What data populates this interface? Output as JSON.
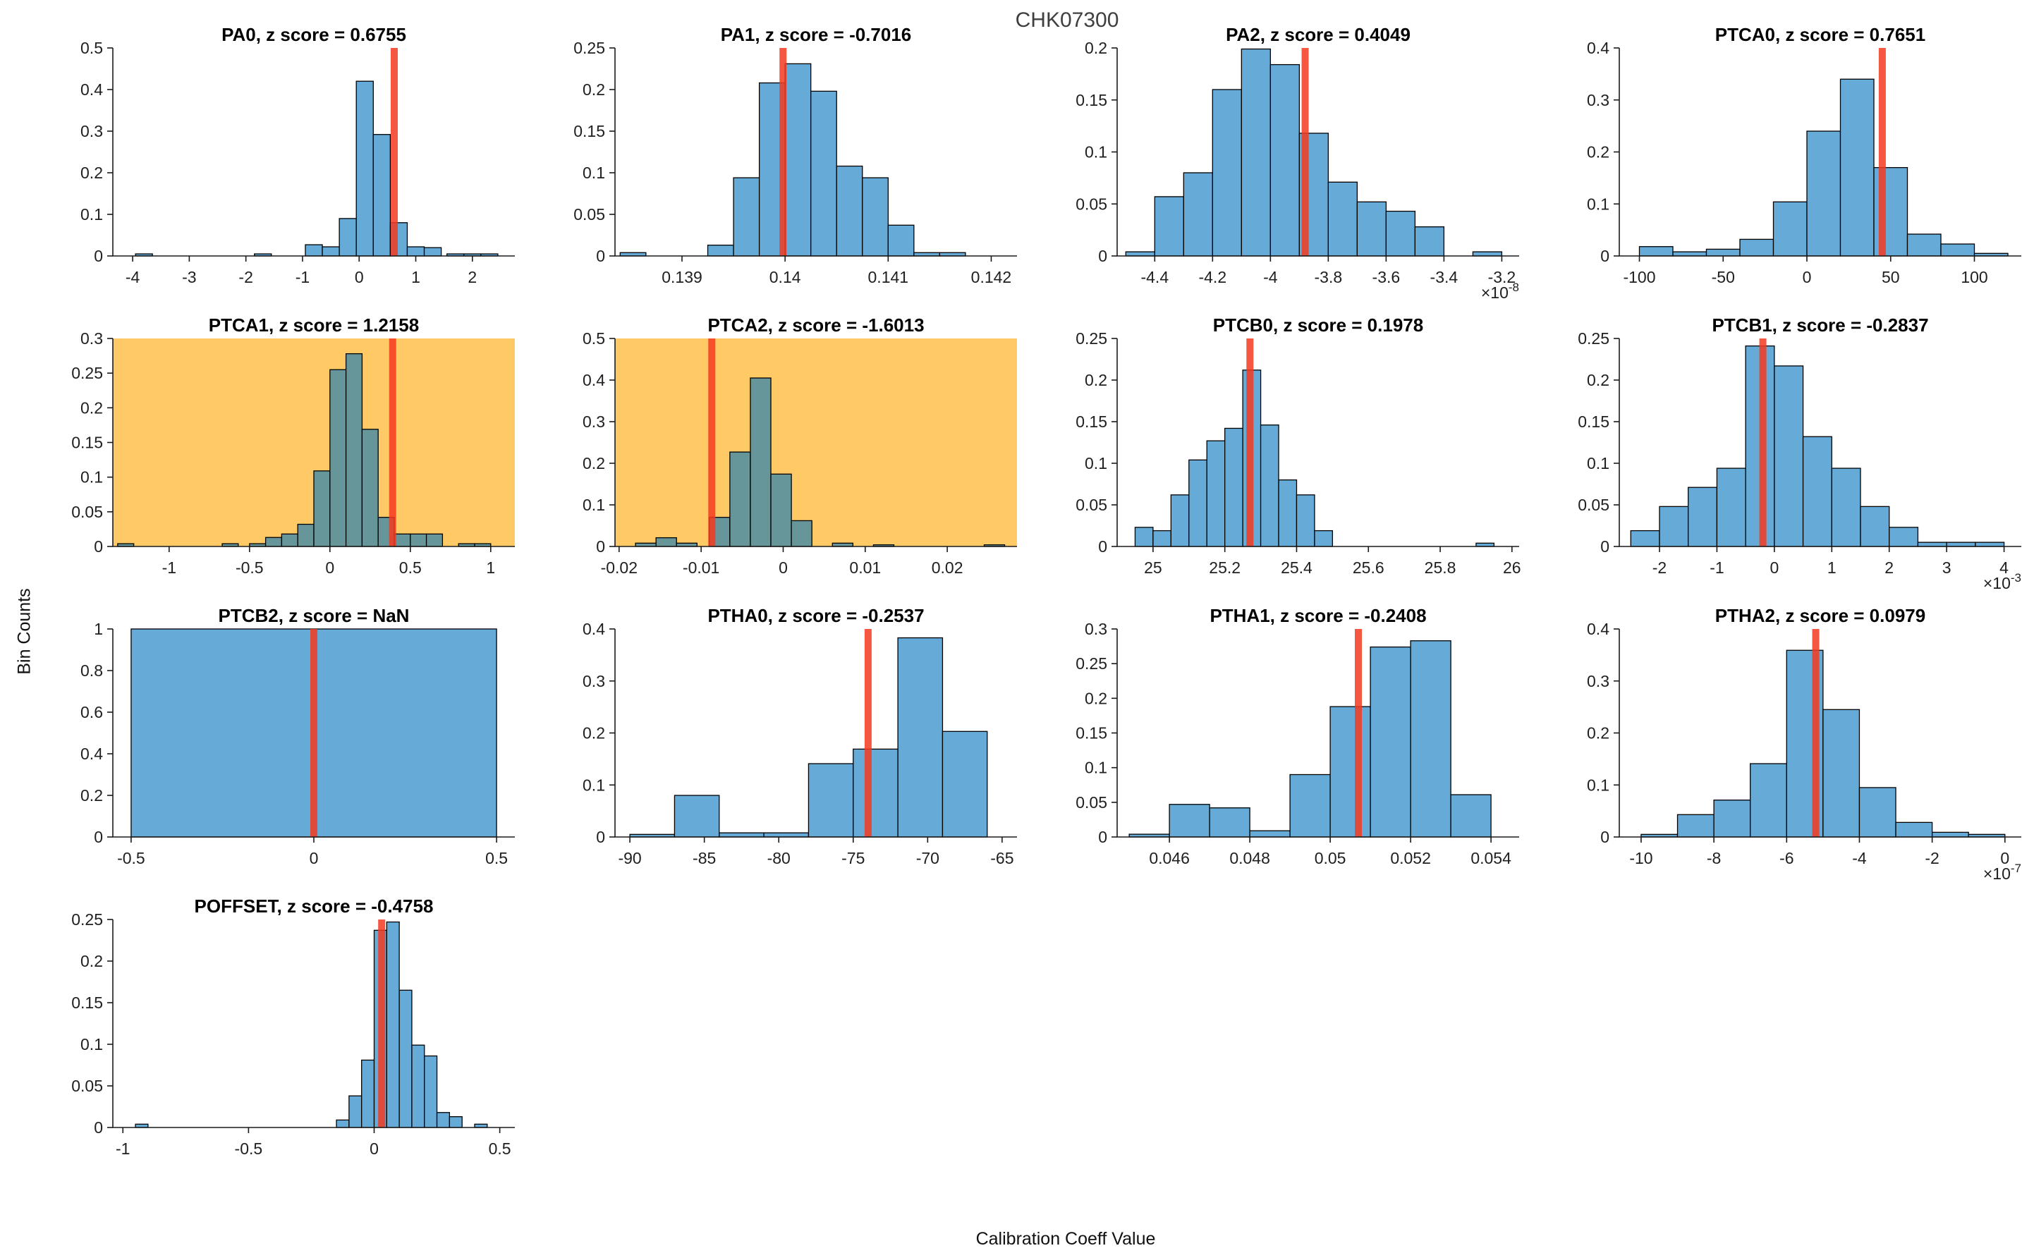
{
  "figure_title": "CHK07300",
  "axis_labels": {
    "y": "Bin Counts",
    "x": "Calibration Coeff Value"
  },
  "colors": {
    "bar_fill": "#66ABD7",
    "bar_fill_highlighted": "#66959A",
    "bar_edge": "#000000",
    "marker_line": "#F53A1E",
    "highlight_background": "#FFCA66",
    "axis_line": "#1a1a1a",
    "tick_label": "#202020",
    "figure_title_color": "#3F3F3F"
  },
  "chart_data": [
    {
      "type": "bar",
      "name": "PA0",
      "title": "PA0, z score = 0.6755",
      "z_score": "0.6755",
      "highlighted": false,
      "x_scale_exponent": null,
      "xlim": [
        -4.35,
        2.75
      ],
      "ylim": [
        0,
        0.5
      ],
      "xticks": [
        -4,
        -3,
        -2,
        -1,
        0,
        1,
        2
      ],
      "xtick_labels": [
        "-4",
        "-3",
        "-2",
        "-1",
        "0",
        "1",
        "2"
      ],
      "yticks": [
        0,
        0.1,
        0.2,
        0.3,
        0.4,
        0.5
      ],
      "ytick_labels": [
        "0",
        "0.1",
        "0.2",
        "0.3",
        "0.4",
        "0.5"
      ],
      "marker_x": 0.62,
      "bars": [
        [
          -3.95,
          -3.65,
          0.005
        ],
        [
          -1.85,
          -1.55,
          0.005
        ],
        [
          -0.95,
          -0.65,
          0.027
        ],
        [
          -0.65,
          -0.35,
          0.022
        ],
        [
          -0.35,
          -0.05,
          0.09
        ],
        [
          -0.05,
          0.25,
          0.42
        ],
        [
          0.25,
          0.55,
          0.292
        ],
        [
          0.55,
          0.85,
          0.08
        ],
        [
          0.85,
          1.15,
          0.022
        ],
        [
          1.15,
          1.45,
          0.02
        ],
        [
          1.55,
          1.85,
          0.005
        ],
        [
          1.85,
          2.15,
          0.005
        ],
        [
          2.15,
          2.45,
          0.005
        ]
      ]
    },
    {
      "type": "bar",
      "name": "PA1",
      "title": "PA1, z score = -0.7016",
      "z_score": "-0.7016",
      "highlighted": false,
      "x_scale_exponent": null,
      "xlim": [
        0.13835,
        0.14225
      ],
      "ylim": [
        0,
        0.25
      ],
      "xticks": [
        0.139,
        0.14,
        0.141,
        0.142
      ],
      "xtick_labels": [
        "0.139",
        "0.14",
        "0.141",
        "0.142"
      ],
      "yticks": [
        0,
        0.05,
        0.1,
        0.15,
        0.2,
        0.25
      ],
      "ytick_labels": [
        "0",
        "0.05",
        "0.1",
        "0.15",
        "0.2",
        "0.25"
      ],
      "marker_x": 0.13998,
      "bars": [
        [
          0.1384,
          0.13865,
          0.004
        ],
        [
          0.13925,
          0.1395,
          0.013
        ],
        [
          0.1395,
          0.13975,
          0.094
        ],
        [
          0.13975,
          0.14,
          0.208
        ],
        [
          0.14,
          0.14025,
          0.231
        ],
        [
          0.14025,
          0.1405,
          0.198
        ],
        [
          0.1405,
          0.14075,
          0.108
        ],
        [
          0.14075,
          0.141,
          0.094
        ],
        [
          0.141,
          0.14125,
          0.037
        ],
        [
          0.14125,
          0.1415,
          0.004
        ],
        [
          0.1415,
          0.14175,
          0.004
        ]
      ]
    },
    {
      "type": "bar",
      "name": "PA2",
      "title": "PA2, z score = 0.4049",
      "z_score": "0.4049",
      "highlighted": false,
      "x_scale_exponent": "-8",
      "xlim": [
        -4.53,
        -3.14
      ],
      "ylim": [
        0,
        0.2
      ],
      "xticks": [
        -4.4,
        -4.2,
        -4,
        -3.8,
        -3.6,
        -3.4,
        -3.2
      ],
      "xtick_labels": [
        "-4.4",
        "-4.2",
        "-4",
        "-3.8",
        "-3.6",
        "-3.4",
        "-3.2"
      ],
      "yticks": [
        0,
        0.05,
        0.1,
        0.15,
        0.2
      ],
      "ytick_labels": [
        "0",
        "0.05",
        "0.1",
        "0.15",
        "0.2"
      ],
      "marker_x": -3.88,
      "bars": [
        [
          -4.5,
          -4.4,
          0.004
        ],
        [
          -4.4,
          -4.3,
          0.057
        ],
        [
          -4.3,
          -4.2,
          0.08
        ],
        [
          -4.2,
          -4.1,
          0.16
        ],
        [
          -4.1,
          -4.0,
          0.199
        ],
        [
          -4.0,
          -3.9,
          0.184
        ],
        [
          -3.9,
          -3.8,
          0.118
        ],
        [
          -3.8,
          -3.7,
          0.071
        ],
        [
          -3.7,
          -3.6,
          0.052
        ],
        [
          -3.6,
          -3.5,
          0.043
        ],
        [
          -3.5,
          -3.4,
          0.028
        ],
        [
          -3.3,
          -3.2,
          0.004
        ]
      ]
    },
    {
      "type": "bar",
      "name": "PTCA0",
      "title": "PTCA0, z score = 0.7651",
      "z_score": "0.7651",
      "highlighted": false,
      "x_scale_exponent": null,
      "xlim": [
        -112,
        128
      ],
      "ylim": [
        0,
        0.4
      ],
      "xticks": [
        -100,
        -50,
        0,
        50,
        100
      ],
      "xtick_labels": [
        "-100",
        "-50",
        "0",
        "50",
        "100"
      ],
      "yticks": [
        0,
        0.1,
        0.2,
        0.3,
        0.4
      ],
      "ytick_labels": [
        "0",
        "0.1",
        "0.2",
        "0.3",
        "0.4"
      ],
      "marker_x": 45,
      "bars": [
        [
          -100,
          -80,
          0.018
        ],
        [
          -80,
          -60,
          0.008
        ],
        [
          -60,
          -40,
          0.013
        ],
        [
          -40,
          -20,
          0.032
        ],
        [
          -20,
          0,
          0.104
        ],
        [
          0,
          20,
          0.24
        ],
        [
          20,
          40,
          0.34
        ],
        [
          40,
          60,
          0.17
        ],
        [
          60,
          80,
          0.042
        ],
        [
          80,
          100,
          0.023
        ],
        [
          100,
          120,
          0.005
        ]
      ]
    },
    {
      "type": "bar",
      "name": "PTCA1",
      "title": "PTCA1, z score = 1.2158",
      "z_score": "1.2158",
      "highlighted": true,
      "x_scale_exponent": null,
      "xlim": [
        -1.35,
        1.15
      ],
      "ylim": [
        0,
        0.3
      ],
      "xticks": [
        -1,
        -0.5,
        0,
        0.5,
        1
      ],
      "xtick_labels": [
        "-1",
        "-0.5",
        "0",
        "0.5",
        "1"
      ],
      "yticks": [
        0,
        0.05,
        0.1,
        0.15,
        0.2,
        0.25,
        0.3
      ],
      "ytick_labels": [
        "0",
        "0.05",
        "0.1",
        "0.15",
        "0.2",
        "0.25",
        "0.3"
      ],
      "marker_x": 0.39,
      "bars": [
        [
          -1.32,
          -1.22,
          0.004
        ],
        [
          -0.67,
          -0.57,
          0.004
        ],
        [
          -0.5,
          -0.4,
          0.004
        ],
        [
          -0.4,
          -0.3,
          0.013
        ],
        [
          -0.3,
          -0.2,
          0.018
        ],
        [
          -0.2,
          -0.1,
          0.032
        ],
        [
          -0.1,
          0,
          0.109
        ],
        [
          0,
          0.1,
          0.255
        ],
        [
          0.1,
          0.2,
          0.278
        ],
        [
          0.2,
          0.3,
          0.169
        ],
        [
          0.3,
          0.4,
          0.042
        ],
        [
          0.4,
          0.5,
          0.018
        ],
        [
          0.5,
          0.6,
          0.018
        ],
        [
          0.6,
          0.7,
          0.018
        ],
        [
          0.8,
          0.9,
          0.004
        ],
        [
          0.9,
          1.0,
          0.004
        ]
      ]
    },
    {
      "type": "bar",
      "name": "PTCA2",
      "title": "PTCA2, z score = -1.6013",
      "z_score": "-1.6013",
      "highlighted": true,
      "x_scale_exponent": null,
      "xlim": [
        -0.0205,
        0.0285
      ],
      "ylim": [
        0,
        0.5
      ],
      "xticks": [
        -0.02,
        -0.01,
        0,
        0.01,
        0.02
      ],
      "xtick_labels": [
        "-0.02",
        "-0.01",
        "0",
        "0.01",
        "0.02"
      ],
      "yticks": [
        0,
        0.1,
        0.2,
        0.3,
        0.4,
        0.5
      ],
      "ytick_labels": [
        "0",
        "0.1",
        "0.2",
        "0.3",
        "0.4",
        "0.5"
      ],
      "marker_x": -0.0087,
      "bars": [
        [
          -0.018,
          -0.0155,
          0.008
        ],
        [
          -0.0155,
          -0.013,
          0.021
        ],
        [
          -0.013,
          -0.0105,
          0.008
        ],
        [
          -0.009,
          -0.0065,
          0.07
        ],
        [
          -0.0065,
          -0.004,
          0.227
        ],
        [
          -0.004,
          -0.0015,
          0.405
        ],
        [
          -0.0015,
          0.001,
          0.174
        ],
        [
          0.001,
          0.0035,
          0.062
        ],
        [
          0.006,
          0.0085,
          0.008
        ],
        [
          0.011,
          0.0135,
          0.004
        ],
        [
          0.0245,
          0.027,
          0.004
        ]
      ]
    },
    {
      "type": "bar",
      "name": "PTCB0",
      "title": "PTCB0, z score = 0.1978",
      "z_score": "0.1978",
      "highlighted": false,
      "x_scale_exponent": null,
      "xlim": [
        24.9,
        26.02
      ],
      "ylim": [
        0,
        0.25
      ],
      "xticks": [
        25,
        25.2,
        25.4,
        25.6,
        25.8,
        26
      ],
      "xtick_labels": [
        "25",
        "25.2",
        "25.4",
        "25.6",
        "25.8",
        "26"
      ],
      "yticks": [
        0,
        0.05,
        0.1,
        0.15,
        0.2,
        0.25
      ],
      "ytick_labels": [
        "0",
        "0.05",
        "0.1",
        "0.15",
        "0.2",
        "0.25"
      ],
      "marker_x": 25.27,
      "bars": [
        [
          24.95,
          25.0,
          0.023
        ],
        [
          25.0,
          25.05,
          0.019
        ],
        [
          25.05,
          25.1,
          0.062
        ],
        [
          25.1,
          25.15,
          0.104
        ],
        [
          25.15,
          25.2,
          0.127
        ],
        [
          25.2,
          25.25,
          0.142
        ],
        [
          25.25,
          25.3,
          0.212
        ],
        [
          25.3,
          25.35,
          0.146
        ],
        [
          25.35,
          25.4,
          0.08
        ],
        [
          25.4,
          25.45,
          0.062
        ],
        [
          25.45,
          25.5,
          0.019
        ],
        [
          25.9,
          25.95,
          0.004
        ]
      ]
    },
    {
      "type": "bar",
      "name": "PTCB1",
      "title": "PTCB1, z score = -0.2837",
      "z_score": "-0.2837",
      "highlighted": false,
      "x_scale_exponent": "-3",
      "xlim": [
        -2.7,
        4.3
      ],
      "ylim": [
        0,
        0.25
      ],
      "xticks": [
        -2,
        -1,
        0,
        1,
        2,
        3,
        4
      ],
      "xtick_labels": [
        "-2",
        "-1",
        "0",
        "1",
        "2",
        "3",
        "4"
      ],
      "yticks": [
        0,
        0.05,
        0.1,
        0.15,
        0.2,
        0.25
      ],
      "ytick_labels": [
        "0",
        "0.05",
        "0.1",
        "0.15",
        "0.2",
        "0.25"
      ],
      "marker_x": -0.2,
      "bars": [
        [
          -2.5,
          -2,
          0.019
        ],
        [
          -2,
          -1.5,
          0.048
        ],
        [
          -1.5,
          -1,
          0.071
        ],
        [
          -1,
          -0.5,
          0.094
        ],
        [
          -0.5,
          0,
          0.241
        ],
        [
          0,
          0.5,
          0.217
        ],
        [
          0.5,
          1,
          0.132
        ],
        [
          1,
          1.5,
          0.094
        ],
        [
          1.5,
          2,
          0.048
        ],
        [
          2,
          2.5,
          0.023
        ],
        [
          2.5,
          3,
          0.005
        ],
        [
          3,
          3.5,
          0.005
        ],
        [
          3.5,
          4,
          0.005
        ]
      ]
    },
    {
      "type": "bar",
      "name": "PTCB2",
      "title": "PTCB2, z score = NaN",
      "z_score": "NaN",
      "highlighted": false,
      "x_scale_exponent": null,
      "xlim": [
        -0.55,
        0.55
      ],
      "ylim": [
        0,
        1
      ],
      "xticks": [
        -0.5,
        0,
        0.5
      ],
      "xtick_labels": [
        "-0.5",
        "0",
        "0.5"
      ],
      "yticks": [
        0,
        0.2,
        0.4,
        0.6,
        0.8,
        1
      ],
      "ytick_labels": [
        "0",
        "0.2",
        "0.4",
        "0.6",
        "0.8",
        "1"
      ],
      "marker_x": 0,
      "bars": [
        [
          -0.5,
          0.5,
          1
        ]
      ]
    },
    {
      "type": "bar",
      "name": "PTHA0",
      "title": "PTHA0, z score = -0.2537",
      "z_score": "-0.2537",
      "highlighted": false,
      "x_scale_exponent": null,
      "xlim": [
        -91,
        -64
      ],
      "ylim": [
        0,
        0.4
      ],
      "xticks": [
        -90,
        -85,
        -80,
        -75,
        -70,
        -65
      ],
      "xtick_labels": [
        "-90",
        "-85",
        "-80",
        "-75",
        "-70",
        "-65"
      ],
      "yticks": [
        0,
        0.1,
        0.2,
        0.3,
        0.4
      ],
      "ytick_labels": [
        "0",
        "0.1",
        "0.2",
        "0.3",
        "0.4"
      ],
      "marker_x": -74,
      "bars": [
        [
          -90,
          -87,
          0.005
        ],
        [
          -87,
          -84,
          0.08
        ],
        [
          -84,
          -81,
          0.008
        ],
        [
          -81,
          -78,
          0.008
        ],
        [
          -78,
          -75,
          0.141
        ],
        [
          -75,
          -72,
          0.169
        ],
        [
          -72,
          -69,
          0.383
        ],
        [
          -69,
          -66,
          0.203
        ]
      ]
    },
    {
      "type": "bar",
      "name": "PTHA1",
      "title": "PTHA1, z score = -0.2408",
      "z_score": "-0.2408",
      "highlighted": false,
      "x_scale_exponent": null,
      "xlim": [
        0.0447,
        0.0547
      ],
      "ylim": [
        0,
        0.3
      ],
      "xticks": [
        0.046,
        0.048,
        0.05,
        0.052,
        0.054
      ],
      "xtick_labels": [
        "0.046",
        "0.048",
        "0.05",
        "0.052",
        "0.054"
      ],
      "yticks": [
        0,
        0.05,
        0.1,
        0.15,
        0.2,
        0.25,
        0.3
      ],
      "ytick_labels": [
        "0",
        "0.05",
        "0.1",
        "0.15",
        "0.2",
        "0.25",
        "0.3"
      ],
      "marker_x": 0.0507,
      "bars": [
        [
          0.045,
          0.046,
          0.004
        ],
        [
          0.046,
          0.047,
          0.047
        ],
        [
          0.047,
          0.048,
          0.042
        ],
        [
          0.048,
          0.049,
          0.009
        ],
        [
          0.049,
          0.05,
          0.09
        ],
        [
          0.05,
          0.051,
          0.188
        ],
        [
          0.051,
          0.052,
          0.274
        ],
        [
          0.052,
          0.053,
          0.283
        ],
        [
          0.053,
          0.054,
          0.061
        ]
      ]
    },
    {
      "type": "bar",
      "name": "PTHA2",
      "title": "PTHA2, z score = 0.0979",
      "z_score": "0.0979",
      "highlighted": false,
      "x_scale_exponent": "-7",
      "xlim": [
        -10.6,
        0.45
      ],
      "ylim": [
        0,
        0.4
      ],
      "xticks": [
        -10,
        -8,
        -6,
        -4,
        -2,
        0
      ],
      "xtick_labels": [
        "-10",
        "-8",
        "-6",
        "-4",
        "-2",
        "0"
      ],
      "yticks": [
        0,
        0.1,
        0.2,
        0.3,
        0.4
      ],
      "ytick_labels": [
        "0",
        "0.1",
        "0.2",
        "0.3",
        "0.4"
      ],
      "marker_x": -5.2,
      "bars": [
        [
          -10,
          -9,
          0.005
        ],
        [
          -9,
          -8,
          0.043
        ],
        [
          -8,
          -7,
          0.071
        ],
        [
          -7,
          -6,
          0.141
        ],
        [
          -6,
          -5,
          0.359
        ],
        [
          -5,
          -4,
          0.245
        ],
        [
          -4,
          -3,
          0.095
        ],
        [
          -3,
          -2,
          0.028
        ],
        [
          -2,
          -1,
          0.009
        ],
        [
          -1,
          0,
          0.005
        ]
      ]
    },
    {
      "type": "bar",
      "name": "POFFSET",
      "title": "POFFSET, z score = -0.4758",
      "z_score": "-0.4758",
      "highlighted": false,
      "x_scale_exponent": null,
      "xlim": [
        -1.04,
        0.56
      ],
      "ylim": [
        0,
        0.25
      ],
      "xticks": [
        -1,
        -0.5,
        0,
        0.5
      ],
      "xtick_labels": [
        "-1",
        "-0.5",
        "0",
        "0.5"
      ],
      "yticks": [
        0,
        0.05,
        0.1,
        0.15,
        0.2,
        0.25
      ],
      "ytick_labels": [
        "0",
        "0.05",
        "0.1",
        "0.15",
        "0.2",
        "0.25"
      ],
      "marker_x": 0.03,
      "bars": [
        [
          -0.95,
          -0.9,
          0.004
        ],
        [
          -0.15,
          -0.1,
          0.009
        ],
        [
          -0.1,
          -0.05,
          0.038
        ],
        [
          -0.05,
          0,
          0.081
        ],
        [
          0,
          0.05,
          0.237
        ],
        [
          0.05,
          0.1,
          0.247
        ],
        [
          0.1,
          0.15,
          0.165
        ],
        [
          0.15,
          0.2,
          0.099
        ],
        [
          0.2,
          0.25,
          0.086
        ],
        [
          0.25,
          0.3,
          0.018
        ],
        [
          0.3,
          0.35,
          0.013
        ],
        [
          0.4,
          0.45,
          0.004
        ]
      ]
    }
  ]
}
